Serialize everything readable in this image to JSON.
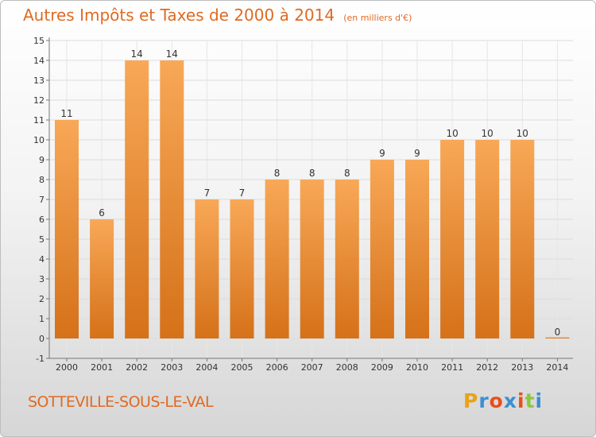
{
  "chart_data": {
    "type": "bar",
    "title": "Autres Impôts et Taxes de 2000 à 2014",
    "subtitle": "(en milliers d'€)",
    "categories": [
      "2000",
      "2001",
      "2002",
      "2003",
      "2004",
      "2005",
      "2006",
      "2007",
      "2008",
      "2009",
      "2010",
      "2011",
      "2012",
      "2013",
      "2014"
    ],
    "values": [
      11,
      6,
      14,
      14,
      7,
      7,
      8,
      8,
      8,
      9,
      9,
      10,
      10,
      10,
      0
    ],
    "ylim": [
      -1,
      15
    ],
    "yticks": [
      -1,
      0,
      1,
      2,
      3,
      4,
      5,
      6,
      7,
      8,
      9,
      10,
      11,
      12,
      13,
      14,
      15
    ],
    "grid": true,
    "legend": "none",
    "bar_color_light": "#f8a857",
    "bar_color_dark": "#d57119",
    "text_color": "#e06a22"
  },
  "footer": {
    "town": "SOTTEVILLE-SOUS-LE-VAL",
    "logo_letters": [
      "P",
      "r",
      "o",
      "x",
      "i",
      "t",
      "i"
    ],
    "logo_colors": [
      "#e8a218",
      "#3c8fd1",
      "#e94e1b",
      "#3c8fd1",
      "#e94e1b",
      "#8dc63f",
      "#3c8fd1"
    ]
  }
}
